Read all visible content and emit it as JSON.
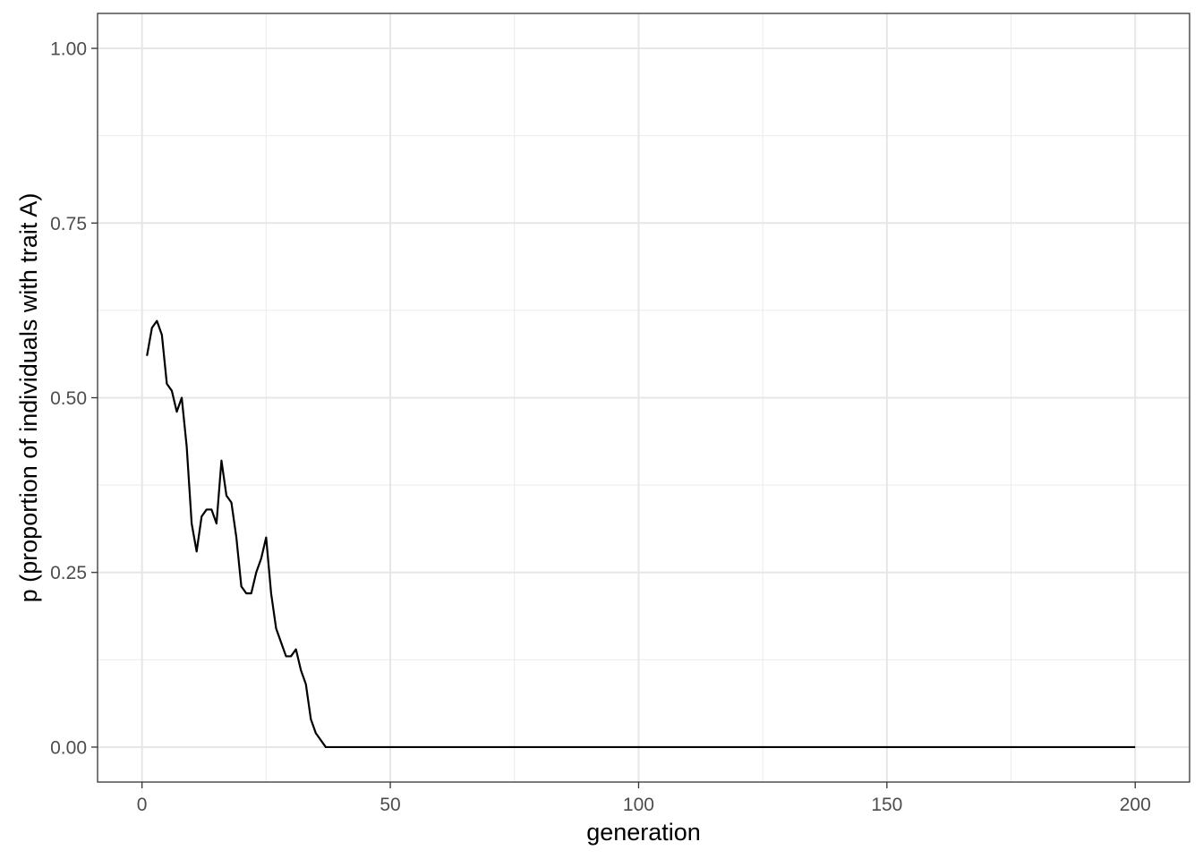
{
  "chart_data": {
    "type": "line",
    "title": "",
    "xlabel": "generation",
    "ylabel": "p (proportion of individuals with trait A)",
    "xlim": [
      -8.95,
      210.95
    ],
    "ylim": [
      -0.05,
      1.05
    ],
    "x_ticks": [
      0,
      50,
      100,
      150,
      200
    ],
    "x_tick_labels": [
      "0",
      "50",
      "100",
      "150",
      "200"
    ],
    "x_minor_ticks": [
      25,
      75,
      125,
      175
    ],
    "y_ticks": [
      0,
      0.25,
      0.5,
      0.75,
      1.0
    ],
    "y_tick_labels": [
      "0.00",
      "0.25",
      "0.50",
      "0.75",
      "1.00"
    ],
    "y_minor_ticks": [
      0.125,
      0.375,
      0.625,
      0.875
    ],
    "grid": true,
    "series": [
      {
        "color": "#000000",
        "x": [
          1,
          2,
          3,
          4,
          5,
          6,
          7,
          8,
          9,
          10,
          11,
          12,
          13,
          14,
          15,
          16,
          17,
          18,
          19,
          20,
          21,
          22,
          23,
          24,
          25,
          26,
          27,
          28,
          29,
          30,
          31,
          32,
          33,
          34,
          35,
          36,
          37,
          200
        ],
        "y": [
          0.56,
          0.6,
          0.61,
          0.59,
          0.52,
          0.51,
          0.48,
          0.5,
          0.43,
          0.32,
          0.28,
          0.33,
          0.34,
          0.34,
          0.32,
          0.41,
          0.36,
          0.35,
          0.3,
          0.23,
          0.22,
          0.22,
          0.25,
          0.27,
          0.3,
          0.22,
          0.17,
          0.15,
          0.13,
          0.13,
          0.14,
          0.11,
          0.09,
          0.04,
          0.02,
          0.01,
          0.0,
          0.0
        ]
      }
    ]
  }
}
